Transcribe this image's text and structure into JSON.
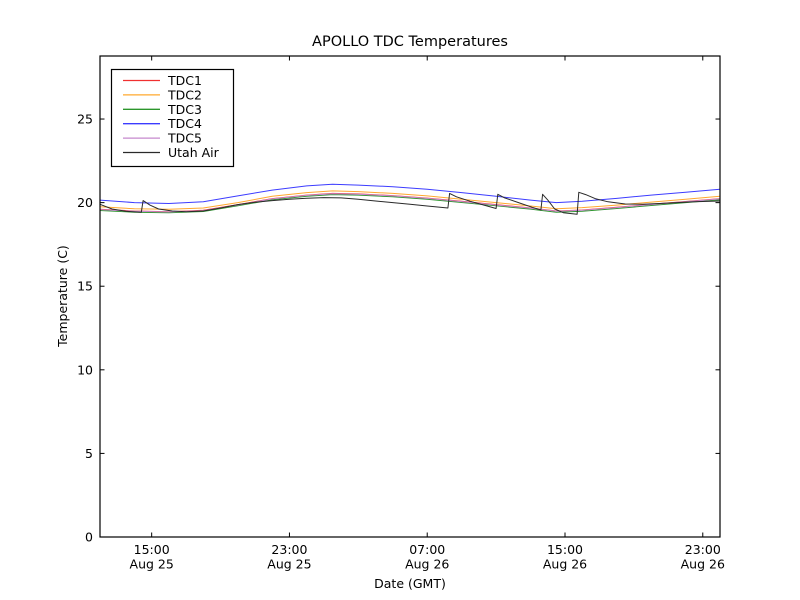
{
  "chart_data": {
    "type": "line",
    "title": "APOLLO TDC Temperatures",
    "xlabel": "Date (GMT)",
    "ylabel": "Temperature (C)",
    "x_unit": "hours since Aug 25 12:00 GMT",
    "xlim": [
      0,
      36
    ],
    "ylim": [
      0,
      28.77
    ],
    "grid": false,
    "legend_position": "upper left",
    "xticks": [
      {
        "value": 3,
        "time": "15:00",
        "date": "Aug 25"
      },
      {
        "value": 11,
        "time": "23:00",
        "date": "Aug 25"
      },
      {
        "value": 19,
        "time": "07:00",
        "date": "Aug 26"
      },
      {
        "value": 27,
        "time": "15:00",
        "date": "Aug 26"
      },
      {
        "value": 35,
        "time": "23:00",
        "date": "Aug 26"
      }
    ],
    "yticks": [
      {
        "value": 0,
        "label": "0"
      },
      {
        "value": 5,
        "label": "5"
      },
      {
        "value": 10,
        "label": "10"
      },
      {
        "value": 15,
        "label": "15"
      },
      {
        "value": 20,
        "label": "20"
      },
      {
        "value": 25,
        "label": "25"
      }
    ],
    "series": [
      {
        "name": "TDC1",
        "color": "#f03030",
        "x": [
          0,
          2,
          4,
          6,
          8,
          10,
          12,
          13.5,
          15,
          17,
          19,
          21,
          23,
          25,
          26.5,
          28,
          30,
          32,
          34,
          36
        ],
        "y": [
          19.6,
          19.5,
          19.46,
          19.54,
          19.88,
          20.24,
          20.45,
          20.55,
          20.52,
          20.42,
          20.27,
          20.08,
          19.88,
          19.68,
          19.5,
          19.56,
          19.72,
          19.9,
          20.07,
          20.24
        ]
      },
      {
        "name": "TDC2",
        "color": "#ffa82e",
        "x": [
          0,
          2,
          4,
          6,
          8,
          10,
          12,
          13.5,
          15,
          17,
          19,
          21,
          23,
          25,
          26.5,
          28,
          30,
          32,
          34,
          36
        ],
        "y": [
          19.75,
          19.63,
          19.6,
          19.68,
          20.0,
          20.38,
          20.6,
          20.7,
          20.66,
          20.55,
          20.4,
          20.2,
          20.0,
          19.8,
          19.63,
          19.7,
          19.85,
          20.03,
          20.2,
          20.38
        ]
      },
      {
        "name": "TDC3",
        "color": "#2c962c",
        "x": [
          0,
          2,
          4,
          6,
          8,
          10,
          12,
          13.5,
          15,
          17,
          19,
          21,
          23,
          25,
          26.5,
          28,
          30,
          32,
          34,
          36
        ],
        "y": [
          19.53,
          19.43,
          19.39,
          19.47,
          19.81,
          20.17,
          20.38,
          20.48,
          20.45,
          20.35,
          20.2,
          20.01,
          19.81,
          19.61,
          19.43,
          19.49,
          19.65,
          19.83,
          20.0,
          20.17
        ]
      },
      {
        "name": "TDC4",
        "color": "#3c3cff",
        "x": [
          0,
          2,
          4,
          6,
          8,
          10,
          12,
          13.5,
          15,
          17,
          19,
          21,
          23,
          25,
          26.5,
          28,
          30,
          32,
          34,
          36
        ],
        "y": [
          20.15,
          20.0,
          19.95,
          20.05,
          20.4,
          20.75,
          21.0,
          21.1,
          21.05,
          20.95,
          20.8,
          20.6,
          20.38,
          20.15,
          20.0,
          20.08,
          20.25,
          20.45,
          20.62,
          20.8
        ]
      },
      {
        "name": "TDC5",
        "color": "#c589ce",
        "x": [
          0,
          2,
          4,
          6,
          8,
          10,
          12,
          13.5,
          15,
          17,
          19,
          21,
          23,
          25,
          26.5,
          28,
          30,
          32,
          34,
          36
        ],
        "y": [
          19.58,
          19.48,
          19.44,
          19.52,
          19.86,
          20.22,
          20.43,
          20.53,
          20.5,
          20.4,
          20.25,
          20.06,
          19.86,
          19.66,
          19.48,
          19.54,
          19.7,
          19.88,
          20.05,
          20.22
        ]
      },
      {
        "name": "Utah Air",
        "color": "#2a2a2a",
        "x": [
          0,
          0.7,
          1.5,
          2.4,
          2.5,
          2.9,
          3.4,
          4.2,
          5,
          6,
          7,
          8,
          9,
          10,
          11,
          12,
          13,
          14,
          15,
          16,
          17,
          18,
          19,
          20.2,
          20.3,
          20.7,
          21.5,
          22.4,
          23.0,
          23.1,
          23.5,
          24.3,
          25.1,
          25.6,
          25.7,
          26.0,
          26.4,
          26.9,
          27.7,
          27.8,
          28.2,
          28.8,
          29.5,
          30.5,
          31.5,
          32.5,
          33.5,
          34.5,
          36
        ],
        "y": [
          19.9,
          19.62,
          19.48,
          19.42,
          20.12,
          19.85,
          19.62,
          19.5,
          19.46,
          19.5,
          19.68,
          19.88,
          20.02,
          20.12,
          20.2,
          20.26,
          20.3,
          20.28,
          20.2,
          20.1,
          20.0,
          19.9,
          19.8,
          19.68,
          20.55,
          20.35,
          20.08,
          19.82,
          19.65,
          20.5,
          20.28,
          20.0,
          19.72,
          19.56,
          20.5,
          20.15,
          19.62,
          19.4,
          19.3,
          20.62,
          20.48,
          20.22,
          20.05,
          19.92,
          19.9,
          19.95,
          20.0,
          20.05,
          20.1
        ]
      }
    ]
  }
}
